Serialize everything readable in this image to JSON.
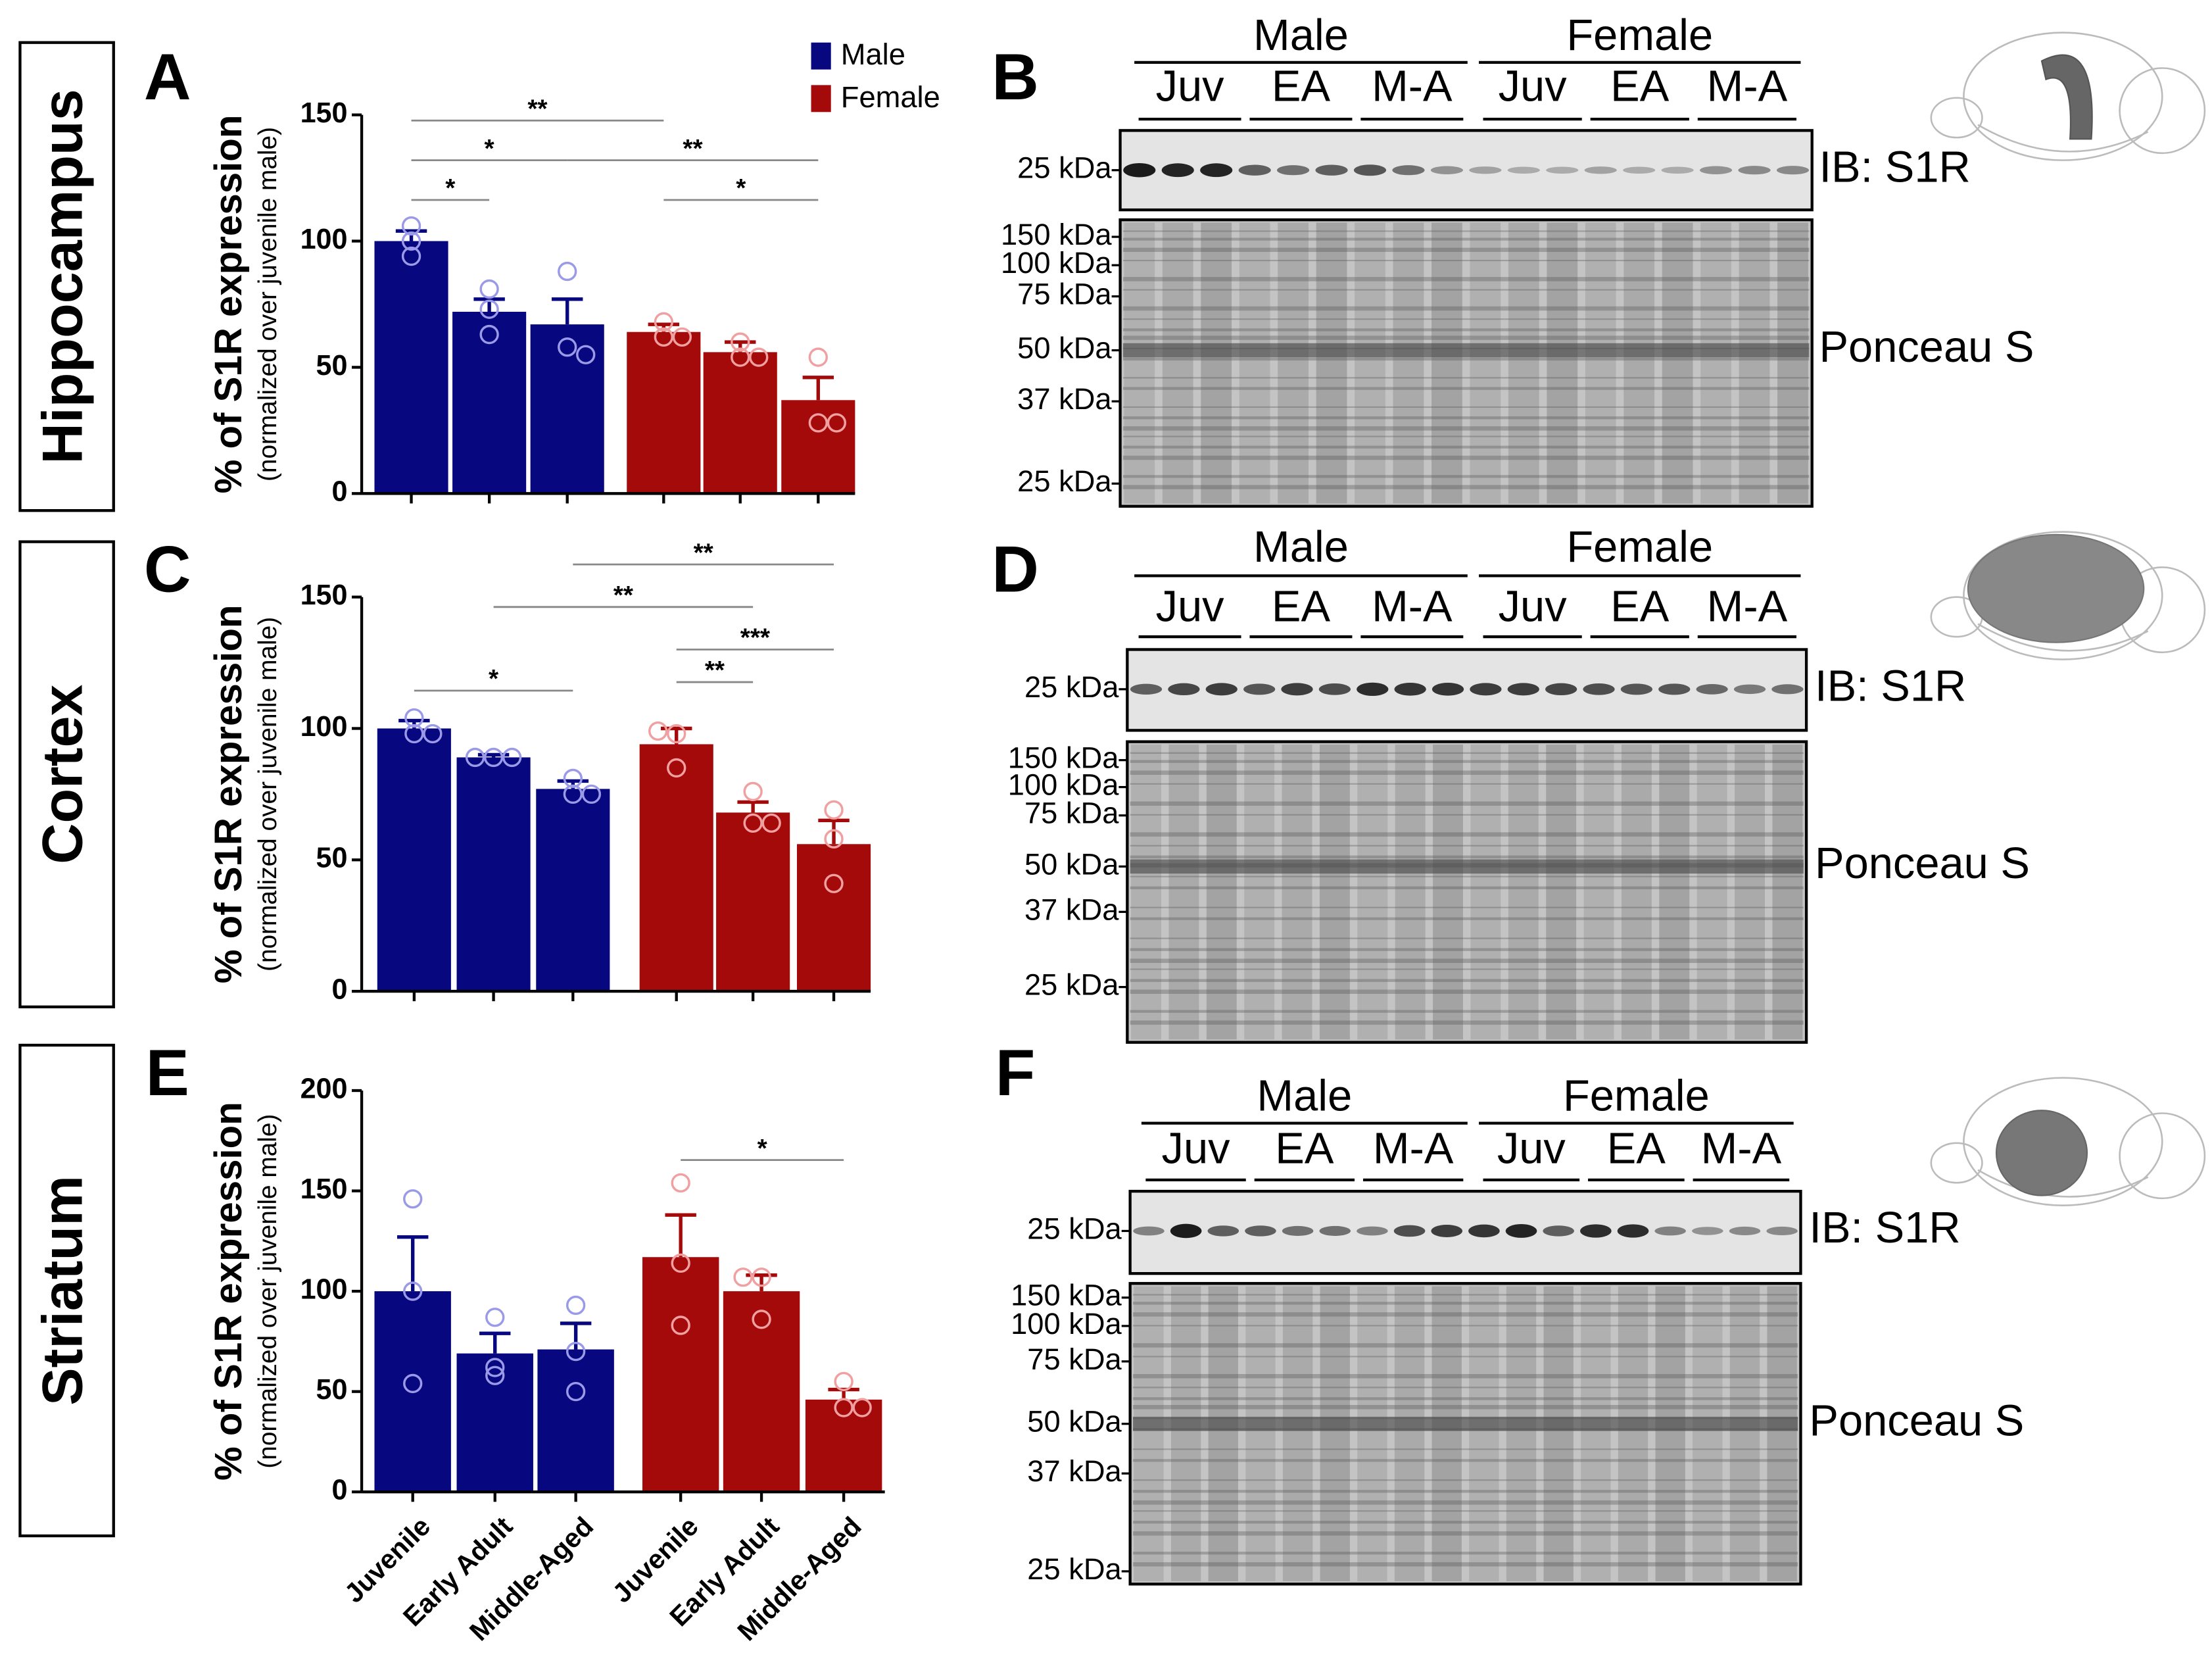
{
  "regions": [
    "Hippocampus",
    "Cortex",
    "Striatum"
  ],
  "chart_data": [
    {
      "type": "bar",
      "panel": "A",
      "ylabel": "% of S1R expression",
      "ylabel_sub": "(normalized over juvenile male)",
      "ylim": [
        0,
        150
      ],
      "yticks": [
        0,
        50,
        100,
        150
      ],
      "series": [
        {
          "name": "Male",
          "color": "#07077f",
          "point_color": "#9a9ae8",
          "values": [
            100,
            72,
            67
          ],
          "errors": [
            4,
            5,
            10
          ],
          "points": [
            [
              106,
              100,
              94
            ],
            [
              81,
              73,
              63
            ],
            [
              88,
              58,
              55
            ]
          ]
        },
        {
          "name": "Female",
          "color": "#a50a0a",
          "point_color": "#f0a0a0",
          "values": [
            64,
            56,
            37
          ],
          "errors": [
            3,
            4,
            9
          ],
          "points": [
            [
              68,
              62,
              62
            ],
            [
              60,
              54,
              54
            ],
            [
              54,
              28,
              28
            ]
          ]
        }
      ],
      "annotations": [
        {
          "from": 0,
          "to": 3,
          "label": "**"
        },
        {
          "from": 0,
          "to": 2,
          "label": "*"
        },
        {
          "from": 2,
          "to": 5,
          "label": "**"
        },
        {
          "from": 0,
          "to": 1,
          "label": "*"
        },
        {
          "from": 3,
          "to": 5,
          "label": "*"
        }
      ]
    },
    {
      "type": "bar",
      "panel": "C",
      "ylabel": "% of S1R expression",
      "ylabel_sub": "(normalized over juvenile male)",
      "ylim": [
        0,
        150
      ],
      "yticks": [
        0,
        50,
        100,
        150
      ],
      "series": [
        {
          "color": "#07077f",
          "point_color": "#9a9ae8",
          "values": [
            100,
            89,
            77
          ],
          "errors": [
            3,
            1,
            3
          ],
          "points": [
            [
              104,
              98,
              98
            ],
            [
              89,
              89,
              89
            ],
            [
              81,
              75,
              75
            ]
          ]
        },
        {
          "color": "#a50a0a",
          "point_color": "#f0a0a0",
          "values": [
            94,
            68,
            56
          ],
          "errors": [
            6,
            4,
            9
          ],
          "points": [
            [
              99,
              98,
              85
            ],
            [
              76,
              64,
              64
            ],
            [
              69,
              58,
              41
            ]
          ]
        }
      ],
      "annotations": [
        {
          "from": 0,
          "to": 2,
          "label": "*"
        },
        {
          "from": 3,
          "to": 4,
          "label": "**"
        },
        {
          "from": 3,
          "to": 5,
          "label": "***"
        },
        {
          "from": 1,
          "to": 4,
          "label": "**"
        },
        {
          "from": 2,
          "to": 5,
          "label": "**"
        }
      ]
    },
    {
      "type": "bar",
      "panel": "E",
      "ylabel": "% of S1R expression",
      "ylabel_sub": "(normalized over juvenile male)",
      "ylim": [
        0,
        200
      ],
      "yticks": [
        0,
        50,
        100,
        150,
        200
      ],
      "categories": [
        "Juvenile",
        "Early Adult",
        "Middle-Aged"
      ],
      "series": [
        {
          "color": "#07077f",
          "point_color": "#9a9ae8",
          "values": [
            100,
            69,
            71
          ],
          "errors": [
            27,
            10,
            13
          ],
          "points": [
            [
              146,
              100,
              54
            ],
            [
              87,
              62,
              58
            ],
            [
              93,
              70,
              50
            ]
          ]
        },
        {
          "color": "#a50a0a",
          "point_color": "#f0a0a0",
          "values": [
            117,
            100,
            46
          ],
          "errors": [
            21,
            8,
            5
          ],
          "points": [
            [
              154,
              114,
              83
            ],
            [
              107,
              107,
              86
            ],
            [
              55,
              42,
              42
            ]
          ]
        }
      ],
      "annotations": [
        {
          "from": 3,
          "to": 5,
          "label": "*"
        }
      ]
    }
  ],
  "blots": [
    {
      "panel": "B",
      "groups": [
        "Male",
        "Female"
      ],
      "lanes": [
        "Juv",
        "EA",
        "M-A",
        "Juv",
        "EA",
        "M-A"
      ],
      "ib_markers": [
        "25 kDa"
      ],
      "ponceau_markers": [
        "150 kDa",
        "100 kDa",
        "75 kDa",
        "50 kDa",
        "37 kDa",
        "25 kDa"
      ],
      "ib_label": "IB: S1R",
      "ponceau_label": "Ponceau S"
    },
    {
      "panel": "D",
      "groups": [
        "Male",
        "Female"
      ],
      "lanes": [
        "Juv",
        "EA",
        "M-A",
        "Juv",
        "EA",
        "M-A"
      ],
      "ib_markers": [
        "25 kDa"
      ],
      "ponceau_markers": [
        "150 kDa",
        "100 kDa",
        "75 kDa",
        "50 kDa",
        "37 kDa",
        "25 kDa"
      ],
      "ib_label": "IB: S1R",
      "ponceau_label": "Ponceau S"
    },
    {
      "panel": "F",
      "groups": [
        "Male",
        "Female"
      ],
      "lanes": [
        "Juv",
        "EA",
        "M-A",
        "Juv",
        "EA",
        "M-A"
      ],
      "ib_markers": [
        "25 kDa"
      ],
      "ponceau_markers": [
        "150 kDa",
        "100 kDa",
        "75 kDa",
        "50 kDa",
        "37 kDa",
        "25 kDa"
      ],
      "ib_label": "IB: S1R",
      "ponceau_label": "Ponceau S"
    }
  ]
}
